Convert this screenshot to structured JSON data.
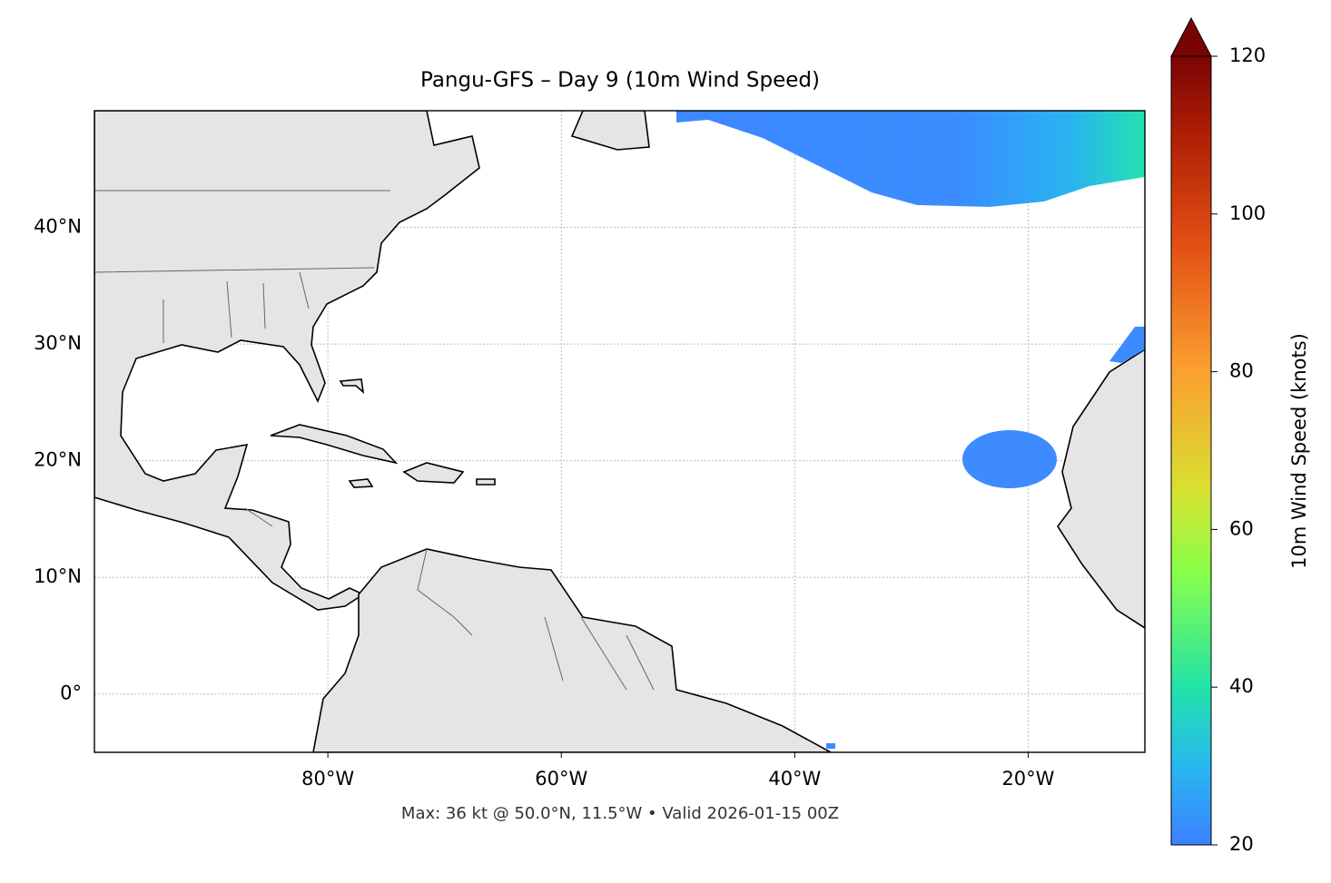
{
  "map": {
    "title": "Pangu-GFS – Day 9 (10m Wind Speed)",
    "extent": {
      "lon": [
        -100,
        -10
      ],
      "lat": [
        -5,
        50
      ]
    },
    "xticks": [
      {
        "value": -80,
        "label": "80°W"
      },
      {
        "value": -60,
        "label": "60°W"
      },
      {
        "value": -40,
        "label": "40°W"
      },
      {
        "value": -20,
        "label": "20°W"
      }
    ],
    "yticks": [
      {
        "value": 0,
        "label": "0°"
      },
      {
        "value": 10,
        "label": "10°N"
      },
      {
        "value": 20,
        "label": "20°N"
      },
      {
        "value": 30,
        "label": "30°N"
      },
      {
        "value": 40,
        "label": "40°N"
      }
    ],
    "colorbar": {
      "label": "10m Wind Speed (knots)",
      "lim": [
        20,
        120
      ],
      "ticks": [
        20,
        40,
        60,
        80,
        100,
        120
      ]
    },
    "footer": "Max: 36 kt @ 50.0°N, 11.5°W • Valid 2026-01-15 00Z"
  }
}
